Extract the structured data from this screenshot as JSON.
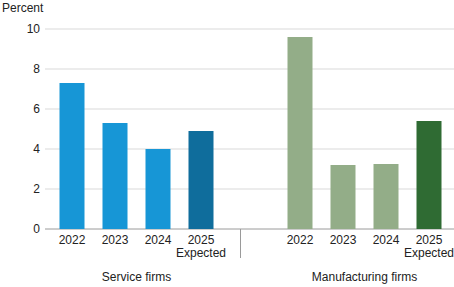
{
  "chart_data": {
    "type": "bar",
    "y_label": "Percent",
    "categories": [
      "2022",
      "2023",
      "2024",
      "2025\nExpected"
    ],
    "series": [
      {
        "name": "Service firms",
        "values": [
          7.3,
          5.3,
          4.0,
          4.9
        ],
        "colors": [
          "#1796d6",
          "#1796d6",
          "#1796d6",
          "#0f6d9c"
        ]
      },
      {
        "name": "Manufacturing firms",
        "values": [
          9.6,
          3.2,
          3.25,
          5.4
        ],
        "colors": [
          "#93ad88",
          "#93ad88",
          "#93ad88",
          "#2f6b33"
        ]
      }
    ],
    "ylim": [
      0,
      10
    ],
    "yticks": [
      0,
      2,
      4,
      6,
      8,
      10
    ],
    "grid": true
  }
}
